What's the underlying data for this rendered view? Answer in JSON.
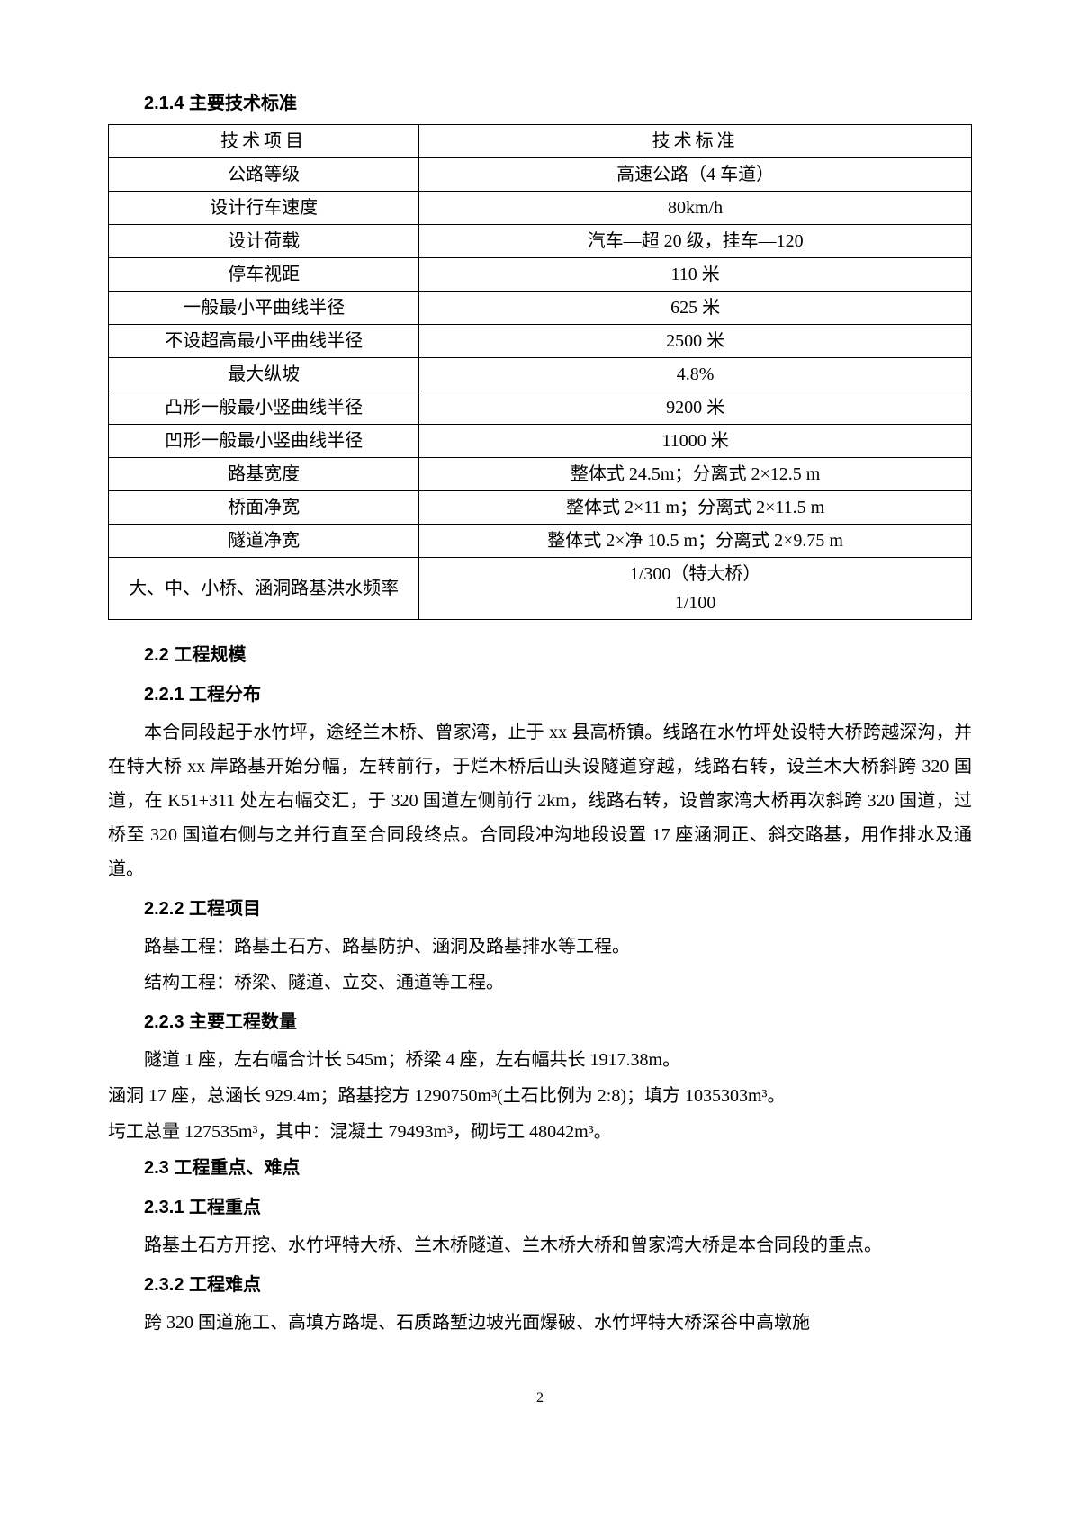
{
  "headings": {
    "h214": "2.1.4 主要技术标准",
    "h22": "2.2  工程规模",
    "h221": "2.2.1 工程分布",
    "h222": "2.2.2 工程项目",
    "h223": "2.2.3 主要工程数量",
    "h23": "2.3  工程重点、难点",
    "h231": "2.3.1 工程重点",
    "h232": "2.3.2 工程难点"
  },
  "table": {
    "header_left": "技术项目",
    "header_right": "技术标准",
    "rows": [
      {
        "l": "公路等级",
        "r": "高速公路（4 车道）"
      },
      {
        "l": "设计行车速度",
        "r": "80km/h"
      },
      {
        "l": "设计荷载",
        "r": "汽车—超 20 级，挂车—120"
      },
      {
        "l": "停车视距",
        "r": "110 米"
      },
      {
        "l": "一般最小平曲线半径",
        "r": "625 米"
      },
      {
        "l": "不设超高最小平曲线半径",
        "r": "2500 米"
      },
      {
        "l": "最大纵坡",
        "r": "4.8%"
      },
      {
        "l": "凸形一般最小竖曲线半径",
        "r": "9200 米"
      },
      {
        "l": "凹形一般最小竖曲线半径",
        "r": "11000 米"
      },
      {
        "l": "路基宽度",
        "r": "整体式 24.5m；分离式 2×12.5 m"
      },
      {
        "l": "桥面净宽",
        "r": "整体式 2×11 m；分离式 2×11.5 m"
      },
      {
        "l": "隧道净宽",
        "r": "整体式 2×净 10.5 m；分离式 2×9.75 m"
      },
      {
        "l": "大、中、小桥、涵洞路基洪水频率",
        "r": "1/300（特大桥）\n1/100"
      }
    ]
  },
  "paragraphs": {
    "p221a": "本合同段起于水竹坪，途经兰木桥、曾家湾，止于 xx 县高桥镇。线路在水竹坪处设特大桥跨越深沟，并在特大桥 xx 岸路基开始分幅，左转前行，于烂木桥后山头设隧道穿越，线路右转，设兰木大桥斜跨 320 国道，在 K51+311 处左右幅交汇，于 320 国道左侧前行 2km，线路右转，设曾家湾大桥再次斜跨 320 国道，过桥至 320 国道右侧与之并行直至合同段终点。合同段冲沟地段设置 17 座涵洞正、斜交路基，用作排水及通道。",
    "p222a": "路基工程：路基土石方、路基防护、涵洞及路基排水等工程。",
    "p222b": "结构工程：桥梁、隧道、立交、通道等工程。",
    "p223a": "隧道 1 座，左右幅合计长 545m；桥梁 4 座，左右幅共长 1917.38m。",
    "p223b": "涵洞 17 座，总涵长 929.4m；路基挖方 1290750m³(土石比例为 2:8)；填方 1035303m³。",
    "p223c": "圬工总量 127535m³，其中：混凝土 79493m³，砌圬工 48042m³。",
    "p231a": "路基土石方开挖、水竹坪特大桥、兰木桥隧道、兰木桥大桥和曾家湾大桥是本合同段的重点。",
    "p232a": "跨 320 国道施工、高填方路堤、石质路堑边坡光面爆破、水竹坪特大桥深谷中高墩施"
  },
  "page_number": "2"
}
